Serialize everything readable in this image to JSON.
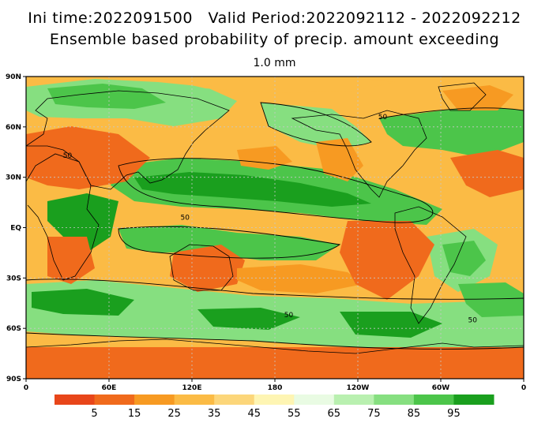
{
  "header": {
    "line1": "Ini time:2022091500   Valid Period:2022092112 - 2022092212",
    "line2": "Ensemble based probability of precip. amount exceeding",
    "threshold": "1.0 mm"
  },
  "axes": {
    "lat_ticks": [
      {
        "label": "90N",
        "lat": 90
      },
      {
        "label": "60N",
        "lat": 60
      },
      {
        "label": "30N",
        "lat": 30
      },
      {
        "label": "EQ",
        "lat": 0
      },
      {
        "label": "30S",
        "lat": -30
      },
      {
        "label": "60S",
        "lat": -60
      },
      {
        "label": "90S",
        "lat": -90
      }
    ],
    "lon_ticks": [
      {
        "label": "0",
        "lon": 0
      },
      {
        "label": "60E",
        "lon": 60
      },
      {
        "label": "120E",
        "lon": 120
      },
      {
        "label": "180",
        "lon": 180
      },
      {
        "label": "120W",
        "lon": 240
      },
      {
        "label": "60W",
        "lon": 300
      },
      {
        "label": "0",
        "lon": 360
      }
    ],
    "lon_range": [
      0,
      360
    ],
    "lat_range": [
      -90,
      90
    ],
    "grid": true
  },
  "colorbar": {
    "colors": [
      "#e8461a",
      "#f06a1c",
      "#f79a22",
      "#fbbb45",
      "#fcd67a",
      "#fef5b3",
      "#e9fbe3",
      "#b9f0b0",
      "#86df80",
      "#4cc54a",
      "#1a9f1e"
    ],
    "labels": [
      "5",
      "15",
      "25",
      "35",
      "45",
      "55",
      "65",
      "75",
      "85",
      "95"
    ]
  },
  "contour_label": "50",
  "contour_label_positions": [
    {
      "lon": 115,
      "lat": 6
    },
    {
      "lon": 258,
      "lat": 66
    },
    {
      "lon": 323,
      "lat": -55
    },
    {
      "lon": 190,
      "lat": -52
    },
    {
      "lon": 30,
      "lat": 43
    }
  ]
}
